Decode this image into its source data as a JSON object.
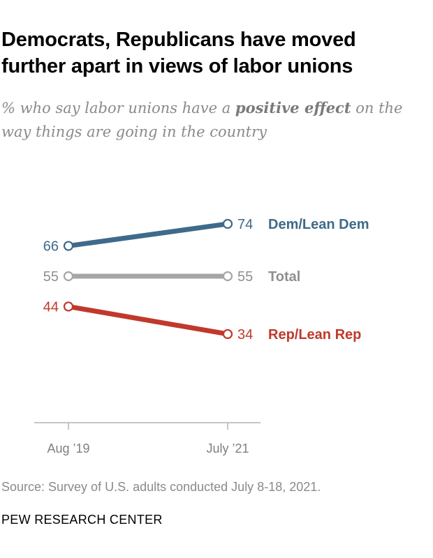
{
  "title_line1": "Democrats, Republicans have moved",
  "title_line2": "further apart in views of labor unions",
  "subtitle_pre": "% who say labor unions have a ",
  "subtitle_bold": "positive effect",
  "subtitle_post": " on the way things are going in the country",
  "source": "Source: Survey of U.S. adults conducted July 8-18, 2021.",
  "credit": "PEW RESEARCH CENTER",
  "chart_data": {
    "type": "line",
    "x": [
      "Aug ’19",
      "July ’21"
    ],
    "series": [
      {
        "name": "Dem/Lean Dem",
        "values": [
          66,
          74
        ],
        "color": "#3f6a8a"
      },
      {
        "name": "Total",
        "values": [
          55,
          55
        ],
        "color": "#a6a6a6"
      },
      {
        "name": "Rep/Lean Rep",
        "values": [
          44,
          34
        ],
        "color": "#c0392b"
      }
    ],
    "data_labels": true,
    "axis_color": "#b3b3b3",
    "label_color_total": "#8f8f8f"
  }
}
